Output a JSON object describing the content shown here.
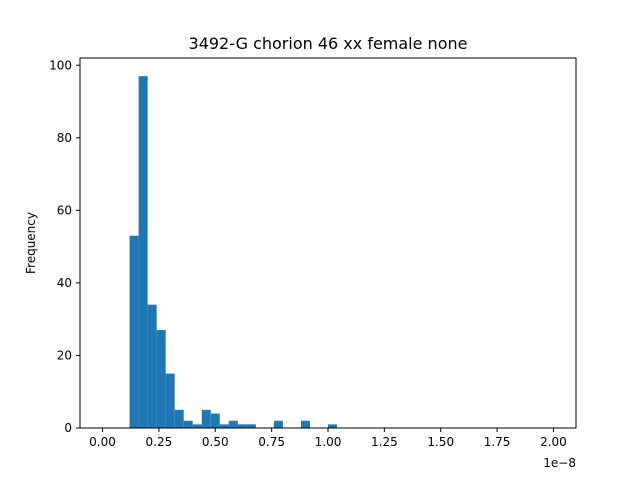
{
  "chart_data": {
    "type": "histogram",
    "title": "3492-G chorion 46 xx female none",
    "xlabel": "",
    "ylabel": "Frequency",
    "x_offset_label": "1e−8",
    "x_scale": 1e-08,
    "xlim": [
      -0.1,
      2.1
    ],
    "ylim": [
      0,
      102
    ],
    "x_ticks": [
      0.0,
      0.25,
      0.5,
      0.75,
      1.0,
      1.25,
      1.5,
      1.75,
      2.0
    ],
    "x_tick_labels": [
      "0.00",
      "0.25",
      "0.50",
      "0.75",
      "1.00",
      "1.25",
      "1.50",
      "1.75",
      "2.00"
    ],
    "y_ticks": [
      0,
      20,
      40,
      60,
      80,
      100
    ],
    "y_tick_labels": [
      "0",
      "20",
      "40",
      "60",
      "80",
      "100"
    ],
    "bin_width": 0.04,
    "bin_start": 0.0,
    "counts": [
      0,
      0,
      0,
      53,
      97,
      34,
      27,
      15,
      5,
      2,
      1,
      5,
      4,
      1,
      2,
      1,
      1,
      0,
      0,
      2,
      0,
      0,
      2,
      0,
      0,
      1,
      0,
      0,
      0,
      0,
      0,
      0,
      0,
      0,
      0,
      0,
      0,
      0,
      0,
      0,
      0,
      0,
      0,
      0,
      0,
      0,
      0,
      0,
      0,
      0
    ],
    "bar_color": "#1f77b4",
    "grid": false
  }
}
